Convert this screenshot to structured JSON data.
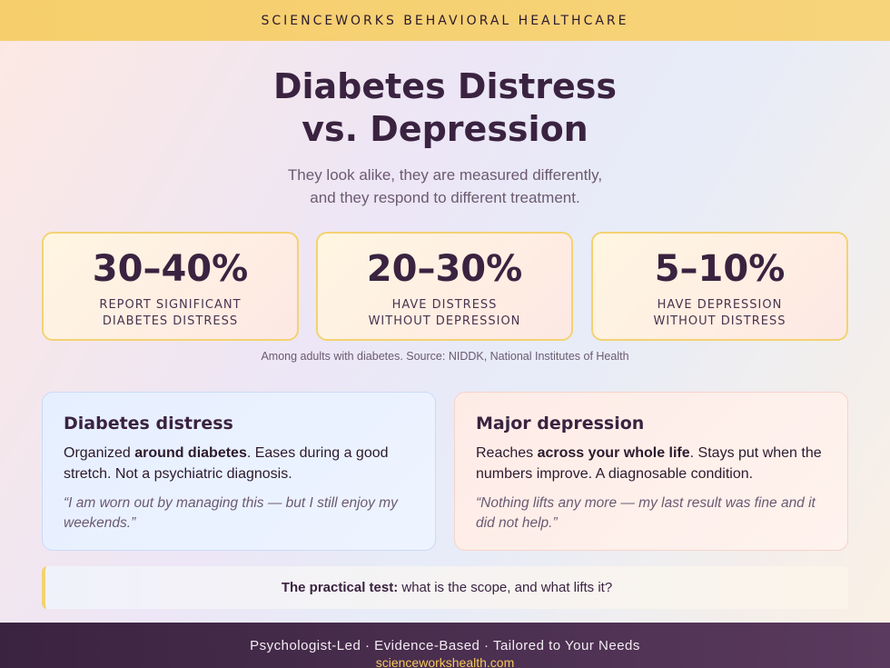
{
  "header": {
    "brand": "SCIENCEWORKS BEHAVIORAL HEALTHCARE"
  },
  "hero": {
    "title_line1": "Diabetes Distress",
    "title_line2": "vs. Depression",
    "subtitle_line1": "They look alike, they are measured differently,",
    "subtitle_line2": "and they respond to different treatment."
  },
  "stats": [
    {
      "value": "30–40%",
      "label_line1": "REPORT SIGNIFICANT",
      "label_line2": "DIABETES DISTRESS"
    },
    {
      "value": "20–30%",
      "label_line1": "HAVE DISTRESS",
      "label_line2": "WITHOUT DEPRESSION"
    },
    {
      "value": "5–10%",
      "label_line1": "HAVE DEPRESSION",
      "label_line2": "WITHOUT DISTRESS"
    }
  ],
  "source_note": "Among adults with diabetes. Source: NIDDK, National Institutes of Health",
  "cards": {
    "distress": {
      "title": "Diabetes distress",
      "body_before": "Organized ",
      "body_bold": "around diabetes",
      "body_after": ". Eases during a good stretch. Not a psychiatric diagnosis.",
      "quote": "“I am worn out by managing this — but I still enjoy my weekends.”"
    },
    "depression": {
      "title": "Major depression",
      "body_before": "Reaches ",
      "body_bold": "across your whole life",
      "body_after": ". Stays put when the numbers improve. A diagnosable condition.",
      "quote": "“Nothing lifts any more — my last result was fine and it did not help.”"
    }
  },
  "practical": {
    "lead": "The practical test:",
    "text": " what is the scope, and what lifts it?"
  },
  "footer": {
    "tagline": "Psychologist-Led · Evidence-Based · Tailored to Your Needs",
    "url": "scienceworkshealth.com"
  },
  "colors": {
    "accent_gold": "#f6cf6c",
    "text_dark": "#3a2340",
    "footer_bg": "#3a2340",
    "footer_url": "#f4c85c"
  }
}
